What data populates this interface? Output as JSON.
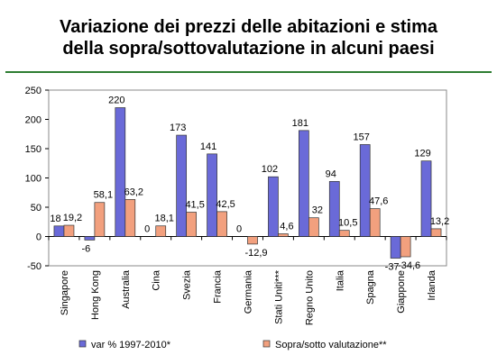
{
  "chart_data": {
    "type": "bar",
    "title": [
      "Variazione dei prezzi delle abitazioni e stima",
      "della sopra/sottovalutazione in alcuni paesi"
    ],
    "categories": [
      "Singapore",
      "Hong Kong",
      "Australia",
      "Cina",
      "Svezia",
      "Francia",
      "Germania",
      "Stati Uniti***",
      "Regno Unito",
      "Italia",
      "Spagna",
      "Giappone",
      "Irlanda"
    ],
    "series": [
      {
        "name": "var % 1997-2010*",
        "color": "#6a6ad8",
        "values": [
          18,
          -6,
          220,
          0,
          173,
          141,
          0,
          102,
          181,
          94,
          157,
          -37,
          129
        ],
        "labels": [
          "18",
          "-6",
          "220",
          "0",
          "173",
          "141",
          "0",
          "102",
          "181",
          "94",
          "157",
          "-37",
          "129"
        ]
      },
      {
        "name": "Sopra/sotto valutazione**",
        "color": "#f2a07e",
        "values": [
          19.2,
          58.1,
          63.2,
          18.1,
          41.5,
          42.5,
          -12.9,
          4.6,
          32,
          10.5,
          47.6,
          -34.6,
          13.2
        ],
        "labels": [
          "19,2",
          "58,1",
          "63,2",
          "18,1",
          "41,5",
          "42,5",
          "-12,9",
          "4,6",
          "32",
          "10,5",
          "47,6",
          "-34,6",
          "13,2"
        ]
      }
    ],
    "ylim": [
      -50,
      250
    ],
    "yticks": [
      -50,
      0,
      50,
      100,
      150,
      200,
      250
    ],
    "grid": false,
    "legend": "bottom"
  }
}
